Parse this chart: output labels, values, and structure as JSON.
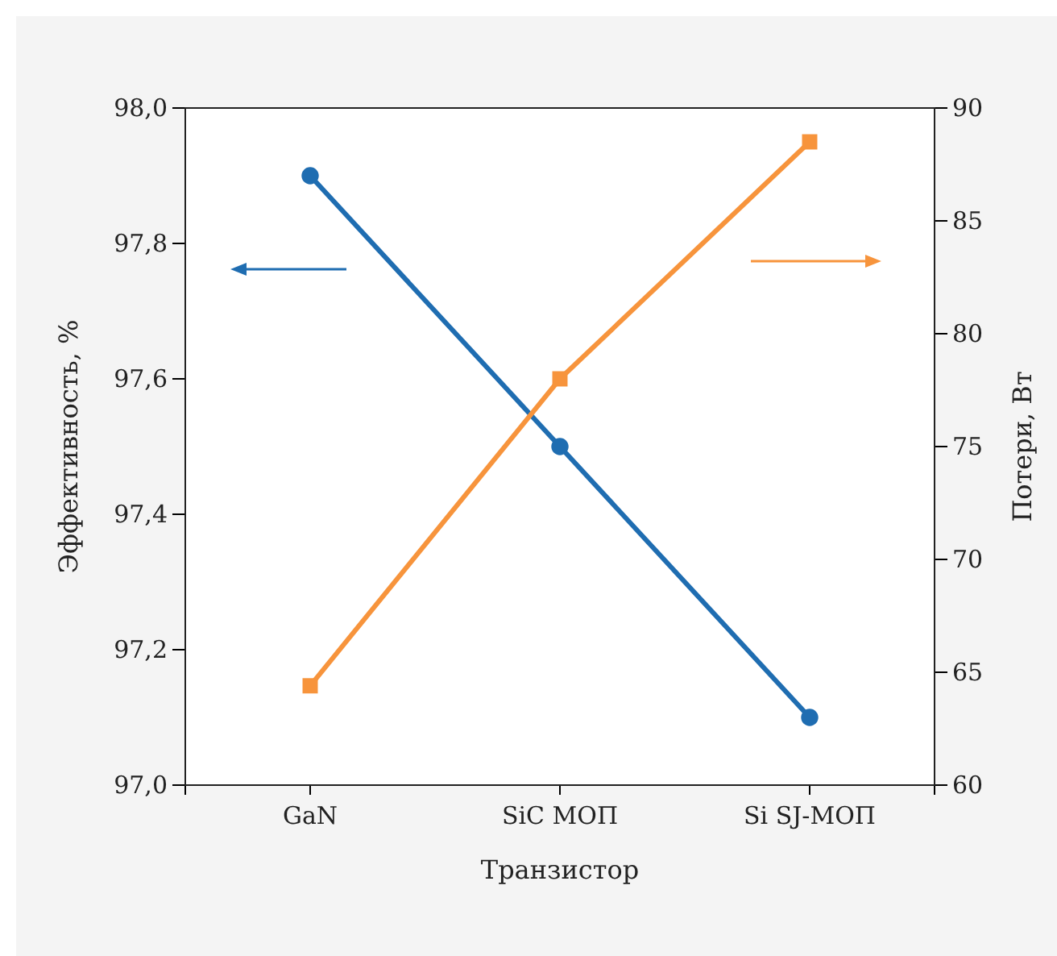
{
  "chart_data": {
    "type": "line",
    "xlabel": "Транзистор",
    "ylabel": "Эффективность, %",
    "y2label": "Потери, Вт",
    "categories": [
      "GaN",
      "SiC МОП",
      "Si SJ-МОП"
    ],
    "series": [
      {
        "color": "#1f6db1",
        "values": [
          97.9,
          97.5,
          97.1
        ],
        "marker": "circle"
      },
      {
        "color": "#f7943c",
        "values": [
          64.4,
          78,
          88.5
        ],
        "marker": "square",
        "axis": "y2"
      }
    ],
    "ylim": [
      97.0,
      98.0
    ],
    "yticks": [
      {
        "value": 97.0,
        "label": "97,0"
      },
      {
        "value": 97.2,
        "label": "97,2"
      },
      {
        "value": 97.4,
        "label": "97,4"
      },
      {
        "value": 97.6,
        "label": "97,6"
      },
      {
        "value": 97.8,
        "label": "97,8"
      },
      {
        "value": 98.0,
        "label": "98,0"
      }
    ],
    "y2lim": [
      60,
      90
    ],
    "y2ticks": [
      60,
      65,
      70,
      75,
      80,
      85,
      90
    ],
    "grid": false,
    "line_style": "solid"
  }
}
